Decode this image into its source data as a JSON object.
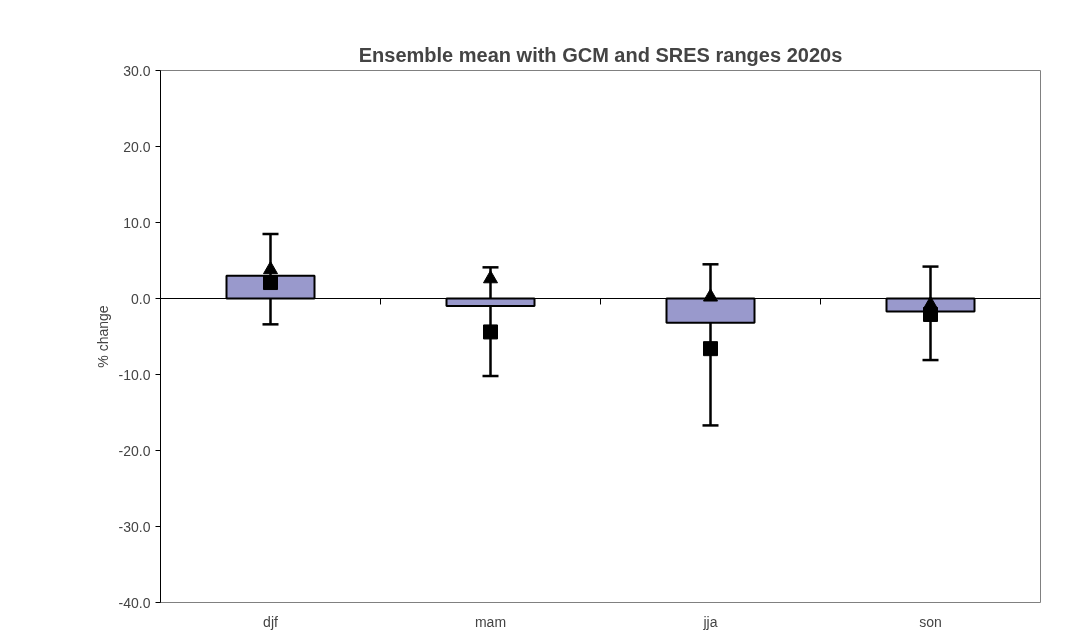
{
  "chart_data": {
    "type": "bar",
    "title": "Ensemble mean with GCM and SRES ranges 2020s",
    "ylabel": "% change",
    "categories": [
      "djf",
      "mam",
      "jja",
      "son"
    ],
    "series": [
      {
        "color": "#9999cc",
        "values": [
          3.0,
          -1.0,
          -3.2,
          -1.7
        ],
        "errors": [
          [
            -3.4,
            8.5
          ],
          [
            -10.2,
            4.1
          ],
          [
            -16.7,
            4.5
          ],
          [
            -8.1,
            4.2
          ]
        ]
      },
      {
        "type": "scatter",
        "marker": "square",
        "color": "#000000",
        "values": [
          2.1,
          -4.4,
          -6.6,
          -2.1
        ]
      },
      {
        "type": "scatter",
        "marker": "triangle",
        "color": "#000000",
        "values": [
          3.8,
          2.6,
          0.2,
          -0.8
        ]
      }
    ],
    "ylim": [
      -40,
      30
    ],
    "yticks": [
      {
        "value": -40,
        "label": "-40.0"
      },
      {
        "value": -30,
        "label": "-30.0"
      },
      {
        "value": -20,
        "label": "-20.0"
      },
      {
        "value": -10,
        "label": "-10.0"
      },
      {
        "value": 0,
        "label": "0.0"
      },
      {
        "value": 10,
        "label": "10.0"
      },
      {
        "value": 20,
        "label": "20.0"
      },
      {
        "value": 30,
        "label": "30.0"
      }
    ]
  }
}
